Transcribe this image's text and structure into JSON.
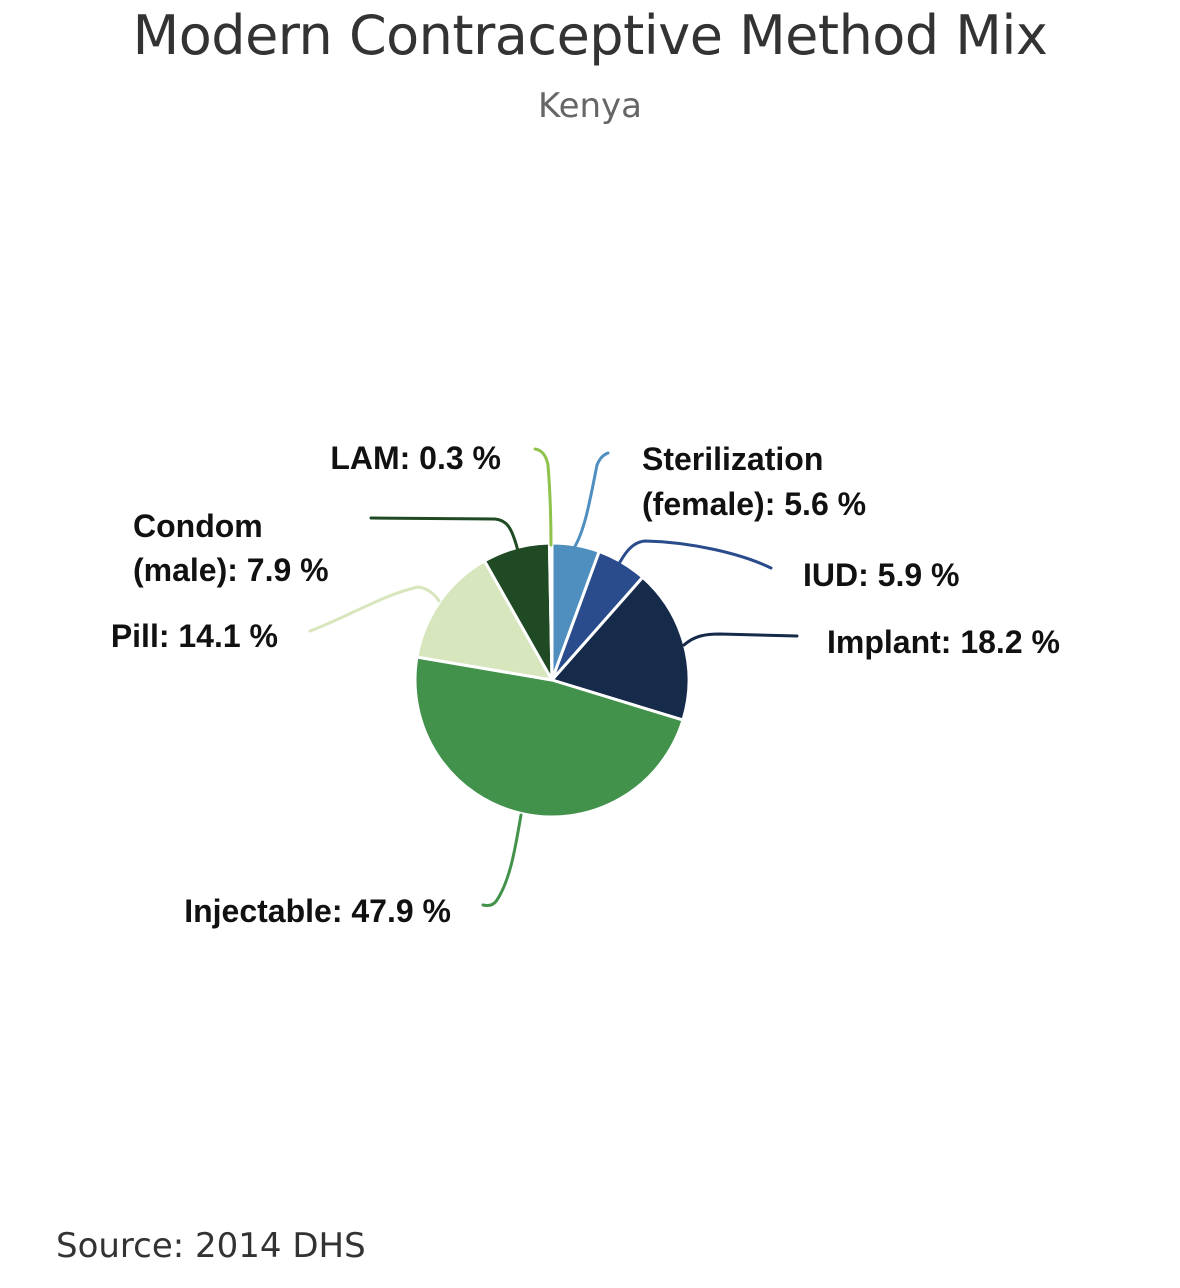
{
  "chart_data": {
    "type": "pie",
    "title": "Modern Contraceptive Method Mix",
    "subtitle": "Kenya",
    "source": "Source: 2014 DHS",
    "unit": "%",
    "slices": [
      {
        "label": "Sterilization (female): 5.6 %",
        "name": "Sterilization (female)",
        "value": 5.6,
        "color": "#4f8fc0"
      },
      {
        "label": "IUD: 5.9 %",
        "name": "IUD",
        "value": 5.9,
        "color": "#2b4c8c"
      },
      {
        "label": "Implant: 18.2 %",
        "name": "Implant",
        "value": 18.2,
        "color": "#162a4a"
      },
      {
        "label": "Injectable: 47.9 %",
        "name": "Injectable",
        "value": 47.9,
        "color": "#43924c"
      },
      {
        "label": "Pill: 14.1 %",
        "name": "Pill",
        "value": 14.1,
        "color": "#d7e6bd"
      },
      {
        "label": "Condom (male): 7.9 %",
        "name": "Condom (male)",
        "value": 7.9,
        "color": "#1f4a23"
      },
      {
        "label": "LAM: 0.3 %",
        "name": "LAM",
        "value": 0.3,
        "color": "#8ec24a"
      }
    ]
  }
}
